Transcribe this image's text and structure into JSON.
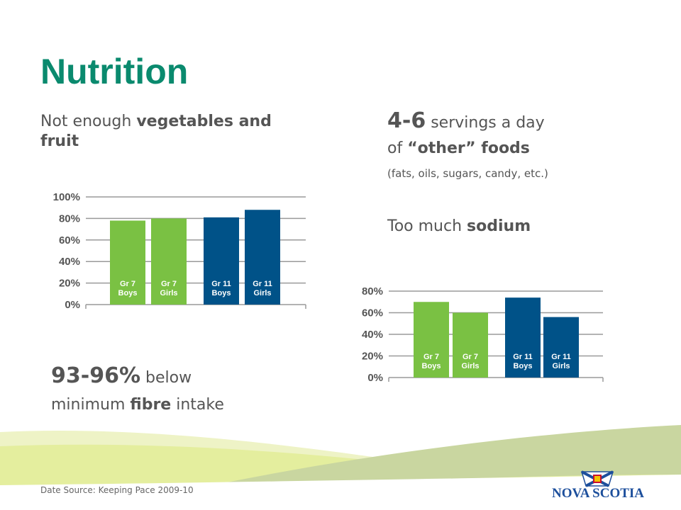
{
  "title": "Nutrition",
  "left": {
    "line1_plain": "Not enough ",
    "line1_bold": "vegetables and",
    "line2_bold": "fruit"
  },
  "right": {
    "servings_num": "4-6",
    "servings_text": " servings a day",
    "other_pre": "of ",
    "other_bold": "“other” foods",
    "other_note": "(fats, oils, sugars, candy, etc.)",
    "sodium_plain": "Too much ",
    "sodium_bold": "sodium"
  },
  "fibre": {
    "pct": "93-96%",
    "below": " below",
    "line2_plain": "minimum ",
    "line2_bold": "fibre",
    "line2_end": " intake"
  },
  "footer": {
    "source": "Date Source: Keeping Pace 2009-10"
  },
  "logo": {
    "text": "NOVA SCOTIA"
  },
  "colors": {
    "green": "#7ac143",
    "blue": "#005288",
    "title": "#0a8a6e"
  },
  "chart_data": [
    {
      "type": "bar",
      "categories": [
        "Gr 7 Boys",
        "Gr 7 Girls",
        "Gr 11 Boys",
        "Gr 11 Girls"
      ],
      "category_lines": [
        [
          "Gr 7",
          "Boys"
        ],
        [
          "Gr 7",
          "Girls"
        ],
        [
          "Gr 11",
          "Boys"
        ],
        [
          "Gr 11",
          "Girls"
        ]
      ],
      "values": [
        78,
        80,
        81,
        88
      ],
      "bar_colors": [
        "#7ac143",
        "#7ac143",
        "#005288",
        "#005288"
      ],
      "yticks": [
        "0%",
        "20%",
        "40%",
        "60%",
        "80%",
        "100%"
      ],
      "ylim": [
        0,
        100
      ],
      "grid": true
    },
    {
      "type": "bar",
      "categories": [
        "Gr 7 Boys",
        "Gr 7 Girls",
        "Gr 11 Boys",
        "Gr 11 Girls"
      ],
      "category_lines": [
        [
          "Gr 7",
          "Boys"
        ],
        [
          "Gr 7",
          "Girls"
        ],
        [
          "Gr 11",
          "Boys"
        ],
        [
          "Gr 11",
          "Girls"
        ]
      ],
      "values": [
        70,
        60,
        74,
        56
      ],
      "bar_colors": [
        "#7ac143",
        "#7ac143",
        "#005288",
        "#005288"
      ],
      "yticks": [
        "0%",
        "20%",
        "40%",
        "60%",
        "80%"
      ],
      "ylim": [
        0,
        80
      ],
      "grid": true
    }
  ]
}
